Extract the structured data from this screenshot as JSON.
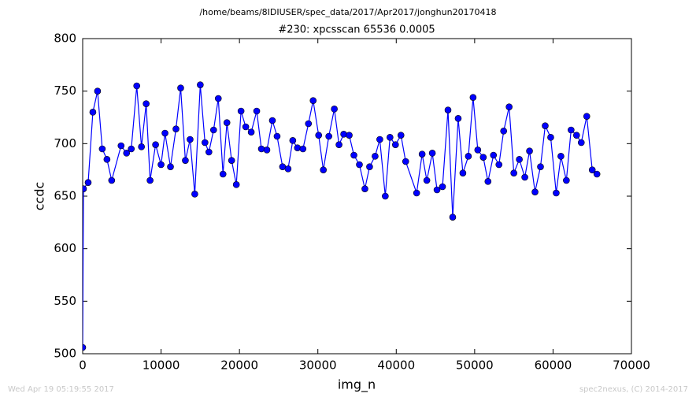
{
  "chart_data": {
    "type": "line",
    "suptitle": "/home/beams/8IDIUSER/spec_data/2017/Apr2017/jonghun20170418",
    "title": "#230: xpcsscan 65536 0.0005",
    "x_label": "img_n",
    "y_label": "ccdc",
    "annotations": [
      "Wed Apr 19 05:19:55 2017",
      "spec2nexus, (C) 2014-2017"
    ],
    "xlim": [
      0,
      70000
    ],
    "xticks": [
      0,
      10000,
      20000,
      30000,
      40000,
      50000,
      60000,
      70000
    ],
    "ylim": [
      500,
      800
    ],
    "yticks": [
      500,
      550,
      600,
      650,
      700,
      750,
      800
    ],
    "grid": false,
    "series": [
      {
        "name": "ccdc",
        "color": "#0000ff",
        "x": [
          0,
          100,
          700,
          1300,
          1900,
          2500,
          3100,
          3700,
          4900,
          5600,
          6200,
          6900,
          7500,
          8100,
          8600,
          9300,
          10000,
          10500,
          11200,
          11900,
          12500,
          13100,
          13700,
          14300,
          15000,
          15600,
          16100,
          16700,
          17300,
          17900,
          18400,
          19000,
          19600,
          20200,
          20800,
          21500,
          22200,
          22800,
          23500,
          24200,
          24800,
          25500,
          26200,
          26800,
          27400,
          28100,
          28800,
          29400,
          30100,
          30700,
          31400,
          32100,
          32700,
          33300,
          34000,
          34600,
          35300,
          36000,
          36600,
          37300,
          37900,
          38600,
          39200,
          39900,
          40600,
          41200,
          42600,
          43300,
          43900,
          44600,
          45200,
          45900,
          46600,
          47200,
          47900,
          48500,
          49200,
          49800,
          50400,
          51100,
          51700,
          52400,
          53100,
          53700,
          54400,
          55000,
          55700,
          56400,
          57000,
          57700,
          58400,
          59000,
          59700,
          60400,
          61000,
          61700,
          62300,
          63000,
          63600,
          64300,
          65000,
          65600
        ],
        "values": [
          506,
          657,
          663,
          730,
          750,
          695,
          685,
          665,
          698,
          691,
          695,
          755,
          697,
          738,
          665,
          699,
          680,
          710,
          678,
          714,
          753,
          684,
          704,
          652,
          756,
          701,
          692,
          713,
          743,
          671,
          720,
          684,
          661,
          731,
          716,
          711,
          731,
          695,
          694,
          722,
          707,
          678,
          676,
          703,
          696,
          695,
          719,
          741,
          708,
          675,
          707,
          733,
          699,
          709,
          708,
          689,
          680,
          657,
          678,
          688,
          704,
          650,
          706,
          699,
          708,
          683,
          653,
          690,
          665,
          691,
          656,
          659,
          732,
          630,
          724,
          672,
          688,
          744,
          694,
          687,
          664,
          689,
          680,
          712,
          735,
          672,
          685,
          668,
          693,
          654,
          678,
          717,
          706,
          653,
          688,
          665,
          713,
          708,
          701,
          726,
          675,
          671
        ]
      }
    ]
  }
}
